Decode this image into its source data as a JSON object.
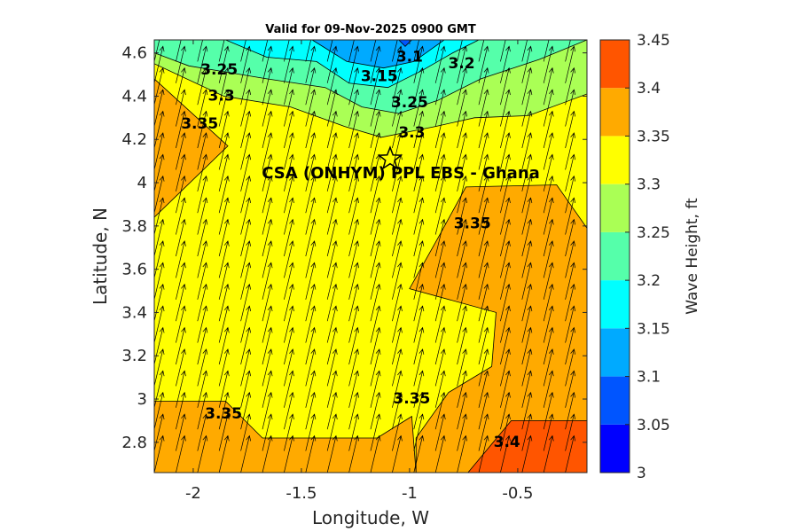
{
  "chart_data": {
    "type": "contour",
    "title": "Valid for 09-Nov-2025 0900 GMT",
    "xlabel": "Longitude, W",
    "ylabel": "Latitude, N",
    "xlim": [
      -2.18,
      -0.18
    ],
    "ylim": [
      2.66,
      4.66
    ],
    "xticks": [
      -2,
      -1.5,
      -1,
      -0.5
    ],
    "xtick_labels": [
      "-2",
      "-1.5",
      "-1",
      "-0.5"
    ],
    "yticks": [
      2.8,
      3,
      3.2,
      3.4,
      3.6,
      3.8,
      4,
      4.2,
      4.4,
      4.6
    ],
    "ytick_labels": [
      "2.8",
      "3",
      "3.2",
      "3.4",
      "3.6",
      "3.8",
      "4",
      "4.2",
      "4.4",
      "4.6"
    ],
    "colorbar": {
      "label": "Wave Height, ft",
      "levels": [
        3,
        3.05,
        3.1,
        3.15,
        3.2,
        3.25,
        3.3,
        3.35,
        3.4,
        3.45
      ],
      "tick_labels": [
        "3",
        "3.05",
        "3.1",
        "3.15",
        "3.2",
        "3.25",
        "3.3",
        "3.35",
        "3.4",
        "3.45"
      ],
      "colors": [
        "#0000ff",
        "#0055ff",
        "#00aaff",
        "#00ffff",
        "#55ffaa",
        "#aaff55",
        "#ffff00",
        "#ffaa00",
        "#ff5500"
      ]
    },
    "regions": [
      {
        "level": 3.35,
        "color": "#ffaa00",
        "polygon": [
          [
            -2.18,
            4.66
          ],
          [
            -2.18,
            3.84
          ],
          [
            -1.84,
            4.17
          ],
          [
            -2.18,
            4.48
          ]
        ]
      },
      {
        "level": 3.35,
        "color": "#ffaa00",
        "polygon": [
          [
            -1.0,
            3.51
          ],
          [
            -0.86,
            3.76
          ],
          [
            -0.74,
            3.98
          ],
          [
            -0.32,
            3.99
          ],
          [
            -0.18,
            3.79
          ],
          [
            -0.18,
            2.66
          ],
          [
            -0.97,
            2.66
          ],
          [
            -0.97,
            2.82
          ],
          [
            -0.82,
            3.03
          ],
          [
            -0.62,
            3.15
          ],
          [
            -0.6,
            3.4
          ]
        ]
      },
      {
        "level": 3.35,
        "color": "#ffaa00",
        "polygon": [
          [
            -2.18,
            2.66
          ],
          [
            -2.18,
            2.99
          ],
          [
            -1.85,
            2.99
          ],
          [
            -1.68,
            2.82
          ],
          [
            -1.15,
            2.82
          ],
          [
            -0.99,
            2.92
          ],
          [
            -0.97,
            2.66
          ]
        ]
      },
      {
        "level": 3.4,
        "color": "#ff5500",
        "polygon": [
          [
            -0.73,
            2.66
          ],
          [
            -0.53,
            2.9
          ],
          [
            -0.18,
            2.9
          ],
          [
            -0.18,
            2.66
          ]
        ]
      },
      {
        "level": 3.3,
        "color": "#aaff55",
        "polygon": [
          [
            -2.18,
            4.66
          ],
          [
            -2.18,
            4.55
          ],
          [
            -1.86,
            4.4
          ],
          [
            -1.55,
            4.35
          ],
          [
            -1.3,
            4.26
          ],
          [
            -1.13,
            4.21
          ],
          [
            -0.98,
            4.24
          ],
          [
            -0.88,
            4.26
          ],
          [
            -0.7,
            4.3
          ],
          [
            -0.45,
            4.31
          ],
          [
            -0.18,
            4.41
          ],
          [
            -0.18,
            4.66
          ]
        ]
      },
      {
        "level": 3.25,
        "color": "#55ffaa",
        "polygon": [
          [
            -2.18,
            4.66
          ],
          [
            -2.18,
            4.6
          ],
          [
            -2.02,
            4.54
          ],
          [
            -1.66,
            4.48
          ],
          [
            -1.39,
            4.44
          ],
          [
            -1.22,
            4.35
          ],
          [
            -1.05,
            4.32
          ],
          [
            -0.87,
            4.38
          ],
          [
            -0.67,
            4.48
          ],
          [
            -0.4,
            4.57
          ],
          [
            -0.18,
            4.66
          ]
        ]
      },
      {
        "level": 3.2,
        "color": "#00ffff",
        "polygon": [
          [
            -1.85,
            4.66
          ],
          [
            -1.66,
            4.58
          ],
          [
            -1.43,
            4.56
          ],
          [
            -1.28,
            4.46
          ],
          [
            -1.1,
            4.44
          ],
          [
            -0.94,
            4.52
          ],
          [
            -0.8,
            4.6
          ],
          [
            -0.68,
            4.66
          ]
        ]
      },
      {
        "level": 3.15,
        "color": "#00aaff",
        "polygon": [
          [
            -1.45,
            4.66
          ],
          [
            -1.29,
            4.56
          ],
          [
            -1.12,
            4.53
          ],
          [
            -0.98,
            4.56
          ],
          [
            -0.84,
            4.66
          ]
        ]
      },
      {
        "level": 3.1,
        "color": "#0055ff",
        "polygon": [
          [
            -1.05,
            4.66
          ],
          [
            -1.02,
            4.63
          ],
          [
            -0.99,
            4.66
          ]
        ]
      }
    ],
    "contour_labels": [
      {
        "text": "3.1",
        "lon": -1.0,
        "lat": 4.58
      },
      {
        "text": "3.2",
        "lon": -0.76,
        "lat": 4.55
      },
      {
        "text": "3.25",
        "lon": -1.88,
        "lat": 4.52
      },
      {
        "text": "3.15",
        "lon": -1.14,
        "lat": 4.49
      },
      {
        "text": "3.3",
        "lon": -1.87,
        "lat": 4.4
      },
      {
        "text": "3.25",
        "lon": -1.0,
        "lat": 4.37
      },
      {
        "text": "3.35",
        "lon": -1.97,
        "lat": 4.27
      },
      {
        "text": "3.3",
        "lon": -0.99,
        "lat": 4.23
      },
      {
        "text": "3.35",
        "lon": -0.71,
        "lat": 3.81
      },
      {
        "text": "3.35",
        "lon": -0.99,
        "lat": 3.0
      },
      {
        "text": "3.35",
        "lon": -1.86,
        "lat": 2.93
      },
      {
        "text": "3.4",
        "lon": -0.55,
        "lat": 2.8
      }
    ],
    "site": {
      "label": "CSA (ONHYM) PPL EBS  - Ghana",
      "lon": -1.09,
      "lat": 4.11,
      "marker": "star-icon"
    },
    "wind_vectors": {
      "u_deg_lon": 0.04,
      "v_deg_lat": 0.17,
      "grid_dlon": 0.1,
      "grid_dlat": 0.1
    }
  }
}
